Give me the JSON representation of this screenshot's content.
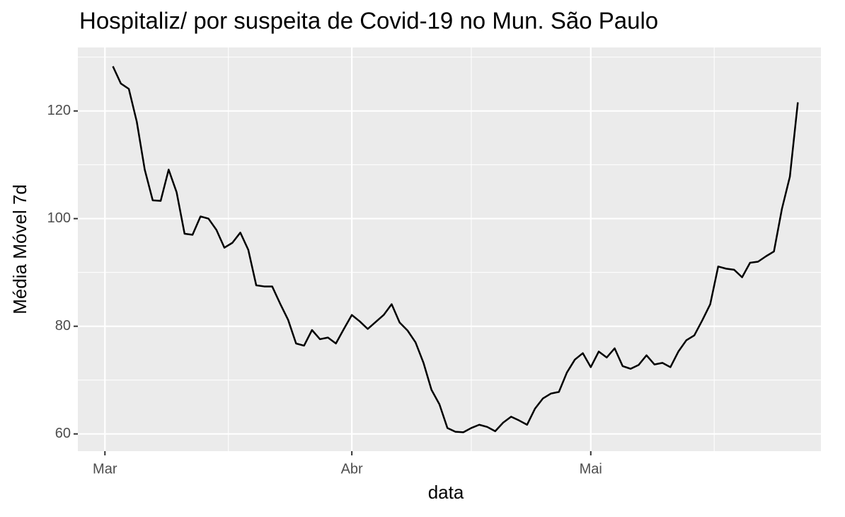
{
  "chart_data": {
    "type": "line",
    "title": "Hospitaliz/ por suspeita de Covid-19 no Mun. São Paulo",
    "x_label": "data",
    "y_label": "Média Móvel 7d",
    "x": [
      1,
      2,
      3,
      4,
      5,
      6,
      7,
      8,
      9,
      10,
      11,
      12,
      13,
      14,
      15,
      16,
      17,
      18,
      19,
      20,
      21,
      22,
      23,
      24,
      25,
      26,
      27,
      28,
      29,
      30,
      31,
      32,
      33,
      34,
      35,
      36,
      37,
      38,
      39,
      40,
      41,
      42,
      43,
      44,
      45,
      46,
      47,
      48,
      49,
      50,
      51,
      52,
      53,
      54,
      55,
      56,
      57,
      58,
      59,
      60,
      61,
      62,
      63,
      64,
      65,
      66,
      67,
      68,
      69,
      70,
      71,
      72,
      73,
      74,
      75,
      76,
      77,
      78,
      79,
      80,
      81,
      82,
      83,
      84,
      85,
      86,
      87
    ],
    "series": [
      {
        "name": "Média Móvel 7d",
        "color": "#000000",
        "values": [
          128.3,
          125.1,
          124.1,
          118.0,
          109.1,
          103.4,
          103.3,
          109.1,
          104.9,
          97.2,
          97.0,
          100.4,
          100.0,
          97.9,
          94.6,
          95.5,
          97.4,
          94.2,
          87.6,
          87.4,
          87.4,
          84.2,
          81.2,
          76.8,
          76.4,
          79.3,
          77.6,
          77.9,
          76.8,
          79.5,
          82.1,
          80.9,
          79.5,
          80.8,
          82.1,
          84.1,
          80.7,
          79.2,
          77.0,
          73.2,
          68.2,
          65.5,
          61.1,
          60.4,
          60.3,
          61.1,
          61.7,
          61.3,
          60.5,
          62.1,
          63.2,
          62.5,
          61.7,
          64.7,
          66.6,
          67.5,
          67.8,
          71.4,
          73.8,
          75.0,
          72.4,
          75.3,
          74.2,
          75.9,
          72.6,
          72.1,
          72.8,
          74.6,
          72.9,
          73.2,
          72.4,
          75.3,
          77.4,
          78.3,
          81.1,
          84.1,
          91.1,
          90.7,
          90.5,
          89.1,
          91.8,
          92.0,
          93.0,
          93.9,
          101.8,
          107.8,
          121.6
        ]
      }
    ],
    "xlim": [
      -3.4,
      89.9
    ],
    "xticks": [
      {
        "value": 0,
        "label": "Mar"
      },
      {
        "value": 31,
        "label": "Abr"
      },
      {
        "value": 61,
        "label": "Mai"
      }
    ],
    "xminorticks": [
      15.5,
      46,
      76.5
    ],
    "ylim": [
      56.8,
      131.8
    ],
    "yticks": [
      60,
      80,
      100,
      120
    ],
    "yminorticks": [
      70,
      90,
      110,
      130
    ],
    "grid": true
  }
}
